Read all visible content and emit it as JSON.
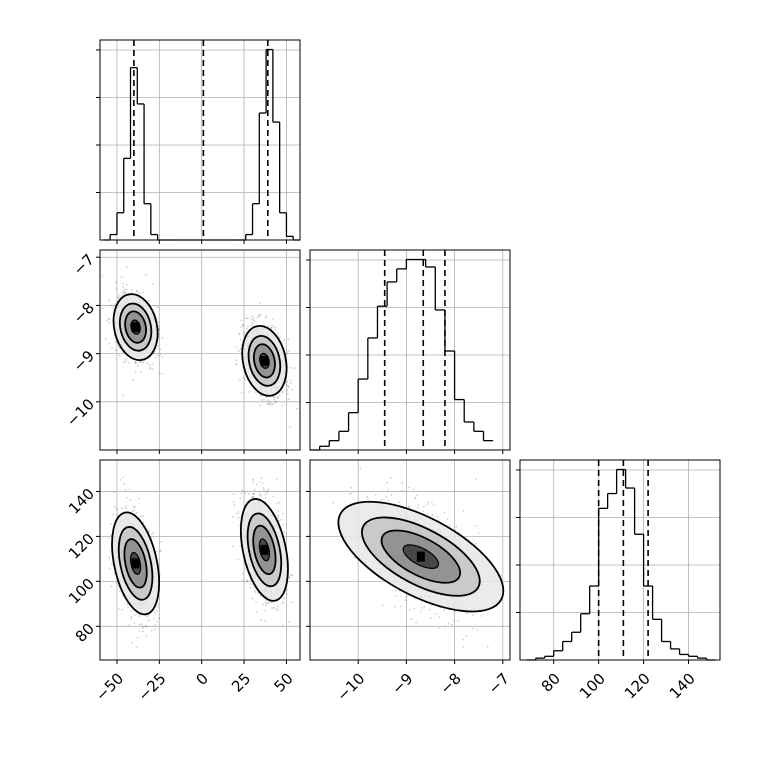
{
  "chart_data": {
    "type": "corner",
    "parameters": [
      {
        "ticks": [
          -50,
          -25,
          0,
          25,
          50
        ],
        "tick_labels": [
          "−50",
          "−25",
          "0",
          "25",
          "50"
        ],
        "range": [
          -60,
          58
        ],
        "quantiles": [
          -40,
          1,
          39
        ]
      },
      {
        "ticks": [
          -7,
          -8,
          -9,
          -10
        ],
        "tick_labels": [
          "−7",
          "−8",
          "−9",
          "−10"
        ],
        "range": [
          -11.0,
          -6.85
        ],
        "quantiles": [
          -9.45,
          -8.65,
          -8.2
        ]
      },
      {
        "ticks": [
          80,
          100,
          120,
          140
        ],
        "tick_labels": [
          "80",
          "100",
          "120",
          "140"
        ],
        "range": [
          65,
          154
        ],
        "quantiles": [
          100,
          111,
          122
        ]
      }
    ],
    "histograms": [
      {
        "parameter": 0,
        "bin_edges": [
          -58,
          -54,
          -50,
          -46,
          -42,
          -38,
          -34,
          -30,
          -26,
          -22,
          -18,
          18,
          22,
          26,
          30,
          34,
          38,
          42,
          46,
          50,
          54,
          58
        ],
        "counts": [
          0,
          3,
          15,
          45,
          95,
          75,
          20,
          3,
          0,
          0,
          0,
          0,
          0,
          3,
          20,
          70,
          105,
          65,
          15,
          2,
          0
        ]
      },
      {
        "parameter": 1,
        "bin_edges": [
          -11.0,
          -10.8,
          -10.6,
          -10.4,
          -10.2,
          -10.0,
          -9.8,
          -9.6,
          -9.4,
          -9.2,
          -9.0,
          -8.8,
          -8.6,
          -8.4,
          -8.2,
          -8.0,
          -7.8,
          -7.6,
          -7.4,
          -7.2
        ],
        "counts": [
          0,
          2,
          5,
          10,
          20,
          38,
          60,
          77,
          90,
          97,
          102,
          102,
          98,
          75,
          53,
          27,
          15,
          10,
          5
        ]
      },
      {
        "parameter": 2,
        "bin_edges": [
          68,
          72,
          76,
          80,
          84,
          88,
          92,
          96,
          100,
          104,
          108,
          112,
          116,
          120,
          124,
          128,
          132,
          136,
          140,
          144,
          148,
          152
        ],
        "counts": [
          0,
          1,
          2,
          5,
          10,
          15,
          25,
          40,
          82,
          90,
          103,
          93,
          68,
          40,
          22,
          10,
          6,
          3,
          2,
          1,
          0
        ]
      }
    ],
    "contour_levels": 4,
    "modes_2d": [
      {
        "params": [
          0,
          1
        ],
        "modes": [
          {
            "center": [
              -39,
              -8.45
            ],
            "spread": [
              6,
              0.33
            ]
          },
          {
            "center": [
              37,
              -9.15
            ],
            "spread": [
              6,
              0.35
            ]
          }
        ]
      },
      {
        "params": [
          0,
          2
        ],
        "modes": [
          {
            "center": [
              -39,
              108
            ],
            "spread": [
              6,
              11
            ]
          },
          {
            "center": [
              37,
              114
            ],
            "spread": [
              6,
              11
            ]
          }
        ]
      },
      {
        "params": [
          1,
          2
        ],
        "modes": [
          {
            "center": [
              -8.7,
              111
            ],
            "spread": [
              0.6,
              11
            ]
          }
        ]
      }
    ],
    "grid": true,
    "legend": ""
  }
}
